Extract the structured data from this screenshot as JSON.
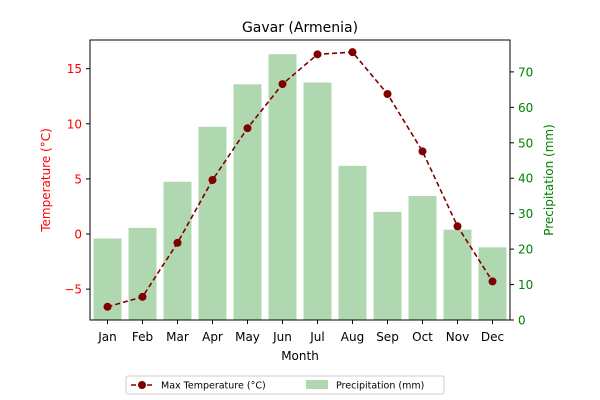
{
  "chart_data": {
    "type": "bar+line",
    "title": "Gavar (Armenia)",
    "xlabel": "Month",
    "categories": [
      "Jan",
      "Feb",
      "Mar",
      "Apr",
      "May",
      "Jun",
      "Jul",
      "Aug",
      "Sep",
      "Oct",
      "Nov",
      "Dec"
    ],
    "left_axis": {
      "label": "Temperature (°C)",
      "color": "#ff0000",
      "ylim": [
        -7.8,
        17.6
      ],
      "ticks": [
        -5,
        0,
        5,
        10,
        15
      ]
    },
    "right_axis": {
      "label": "Precipitation (mm)",
      "color": "#008000",
      "ylim": [
        0,
        79
      ],
      "ticks": [
        0,
        10,
        20,
        30,
        40,
        50,
        60,
        70
      ]
    },
    "series": [
      {
        "name": "Max Temperature (°C)",
        "type": "line",
        "axis": "left",
        "color": "#800000",
        "style": "dashed",
        "marker": "circle",
        "values": [
          -6.6,
          -5.7,
          -0.8,
          4.9,
          9.6,
          13.6,
          16.3,
          16.5,
          12.7,
          7.5,
          0.7,
          -4.3
        ]
      },
      {
        "name": "Precipitation (mm)",
        "type": "bar",
        "axis": "right",
        "color": "#b0d8b0",
        "values": [
          23,
          26,
          39,
          54.5,
          66.5,
          75,
          67,
          43.5,
          30.5,
          35,
          25.5,
          20.5
        ]
      }
    ],
    "legend": {
      "placement": "bottom-center",
      "entries": [
        "Max Temperature (°C)",
        "Precipitation (mm)"
      ]
    },
    "grid": false
  }
}
